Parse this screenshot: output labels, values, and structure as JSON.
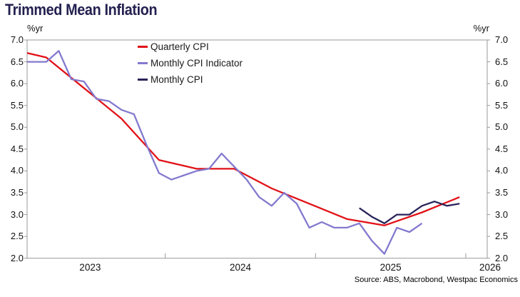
{
  "chart_data": {
    "type": "line",
    "title": "Trimmed Mean Inflation",
    "unit_label": "%yr",
    "source": "Source: ABS, Macrobond, Westpac Economics",
    "ylim": [
      2.0,
      7.0
    ],
    "y_tick_step": 0.5,
    "y_ticks": [
      "7.0",
      "6.5",
      "6.0",
      "5.5",
      "5.0",
      "4.5",
      "4.0",
      "3.5",
      "3.0",
      "2.5",
      "2.0"
    ],
    "x_year_labels": [
      "2023",
      "2024",
      "2025",
      "2026"
    ],
    "x_range_note": "monthly/quarterly data from late 2022 to Dec 2025, axis extends to 2026",
    "grid": false,
    "legend_position": "top-center-inside",
    "frame_color": "#999999",
    "series": [
      {
        "name": "Quarterly CPI",
        "color": "#e11117",
        "frequency": "quarterly",
        "points": [
          [
            "2022-12",
            6.8
          ],
          [
            "2023-03",
            6.6
          ],
          [
            "2023-06",
            5.9
          ],
          [
            "2023-09",
            5.2
          ],
          [
            "2023-12",
            4.25
          ],
          [
            "2024-03",
            4.05
          ],
          [
            "2024-06",
            4.05
          ],
          [
            "2024-09",
            3.6
          ],
          [
            "2024-12",
            3.25
          ],
          [
            "2025-03",
            2.9
          ],
          [
            "2025-06",
            2.75
          ],
          [
            "2025-09",
            3.05
          ],
          [
            "2025-12",
            3.4
          ]
        ]
      },
      {
        "name": "Monthly CPI Indicator",
        "color": "#8379ce",
        "frequency": "monthly",
        "points": [
          [
            "2023-01",
            6.5
          ],
          [
            "2023-02",
            6.5
          ],
          [
            "2023-03",
            6.5
          ],
          [
            "2023-04",
            6.75
          ],
          [
            "2023-05",
            6.1
          ],
          [
            "2023-06",
            6.05
          ],
          [
            "2023-07",
            5.65
          ],
          [
            "2023-08",
            5.6
          ],
          [
            "2023-09",
            5.4
          ],
          [
            "2023-10",
            5.3
          ],
          [
            "2023-11",
            4.6
          ],
          [
            "2023-12",
            3.95
          ],
          [
            "2024-01",
            3.8
          ],
          [
            "2024-02",
            3.9
          ],
          [
            "2024-03",
            4.0
          ],
          [
            "2024-04",
            4.05
          ],
          [
            "2024-05",
            4.4
          ],
          [
            "2024-06",
            4.1
          ],
          [
            "2024-07",
            3.8
          ],
          [
            "2024-08",
            3.4
          ],
          [
            "2024-09",
            3.2
          ],
          [
            "2024-10",
            3.5
          ],
          [
            "2024-11",
            3.25
          ],
          [
            "2024-12",
            2.7
          ],
          [
            "2025-01",
            2.83
          ],
          [
            "2025-02",
            2.7
          ],
          [
            "2025-03",
            2.7
          ],
          [
            "2025-04",
            2.8
          ],
          [
            "2025-05",
            2.4
          ],
          [
            "2025-06",
            2.1
          ],
          [
            "2025-07",
            2.7
          ],
          [
            "2025-08",
            2.6
          ],
          [
            "2025-09",
            2.8
          ]
        ]
      },
      {
        "name": "Monthly CPI",
        "color": "#29235a",
        "frequency": "monthly",
        "points": [
          [
            "2025-04",
            3.15
          ],
          [
            "2025-05",
            2.95
          ],
          [
            "2025-06",
            2.8
          ],
          [
            "2025-07",
            3.0
          ],
          [
            "2025-08",
            3.0
          ],
          [
            "2025-09",
            3.2
          ],
          [
            "2025-10",
            3.3
          ],
          [
            "2025-11",
            3.2
          ],
          [
            "2025-12",
            3.25
          ]
        ]
      }
    ]
  }
}
